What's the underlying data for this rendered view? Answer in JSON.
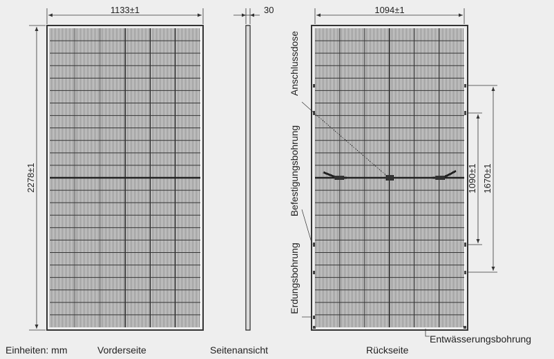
{
  "dimensions": {
    "front_width": "1133±1",
    "front_height": "2278±1",
    "side_thickness": "30",
    "back_width": "1094±1",
    "hole_spacing_inner": "1090±1",
    "hole_spacing_outer": "1670±1"
  },
  "annotations": {
    "junction_box": "Anschlussdose",
    "mounting_hole": "Befestigungsbohrung",
    "grounding_hole": "Erdungsbohrung",
    "drain_hole": "Entwässerungsbohrung"
  },
  "captions": {
    "units": "Einheiten: mm",
    "front": "Vorderseite",
    "side": "Seitenansicht",
    "back": "Rückseite"
  },
  "colors": {
    "background": "#eeeeee",
    "line": "#333333",
    "cell_hatch": "#555555"
  }
}
